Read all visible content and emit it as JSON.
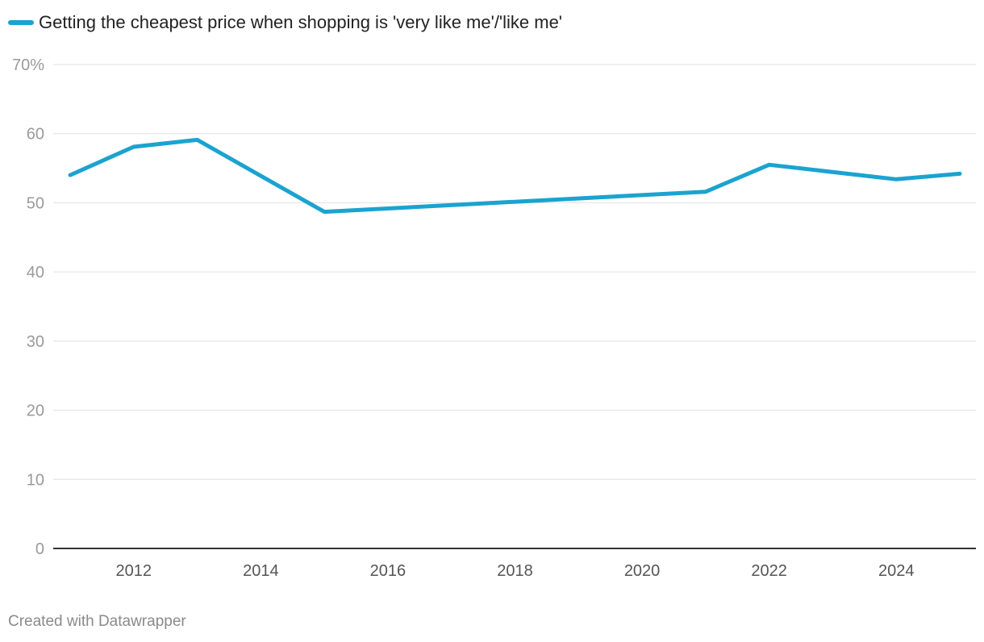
{
  "chart_data": {
    "type": "line",
    "legend_label": "Getting the cheapest price when shopping is 'very like me'/'like me'",
    "x": [
      2011,
      2012,
      2013,
      2015,
      2021,
      2022,
      2024,
      2025
    ],
    "series": [
      {
        "name": "Getting the cheapest price when shopping is 'very like me'/'like me'",
        "values": [
          54.0,
          58.1,
          59.1,
          48.7,
          51.6,
          55.5,
          53.4,
          54.2
        ],
        "color": "#1ba3d0"
      }
    ],
    "xlim": [
      2011,
      2025
    ],
    "ylim": [
      0,
      70
    ],
    "y_ticks": [
      {
        "value": 70,
        "label": "70%"
      },
      {
        "value": 60,
        "label": "60"
      },
      {
        "value": 50,
        "label": "50"
      },
      {
        "value": 40,
        "label": "40"
      },
      {
        "value": 30,
        "label": "30"
      },
      {
        "value": 20,
        "label": "20"
      },
      {
        "value": 10,
        "label": "10"
      },
      {
        "value": 0,
        "label": "0"
      }
    ],
    "x_ticks": [
      {
        "value": 2012,
        "label": "2012"
      },
      {
        "value": 2014,
        "label": "2014"
      },
      {
        "value": 2016,
        "label": "2016"
      },
      {
        "value": 2018,
        "label": "2018"
      },
      {
        "value": 2020,
        "label": "2020"
      },
      {
        "value": 2022,
        "label": "2022"
      },
      {
        "value": 2024,
        "label": "2024"
      }
    ],
    "grid": true,
    "legend_position": "top-left"
  },
  "footer": {
    "credit": "Created with Datawrapper"
  }
}
